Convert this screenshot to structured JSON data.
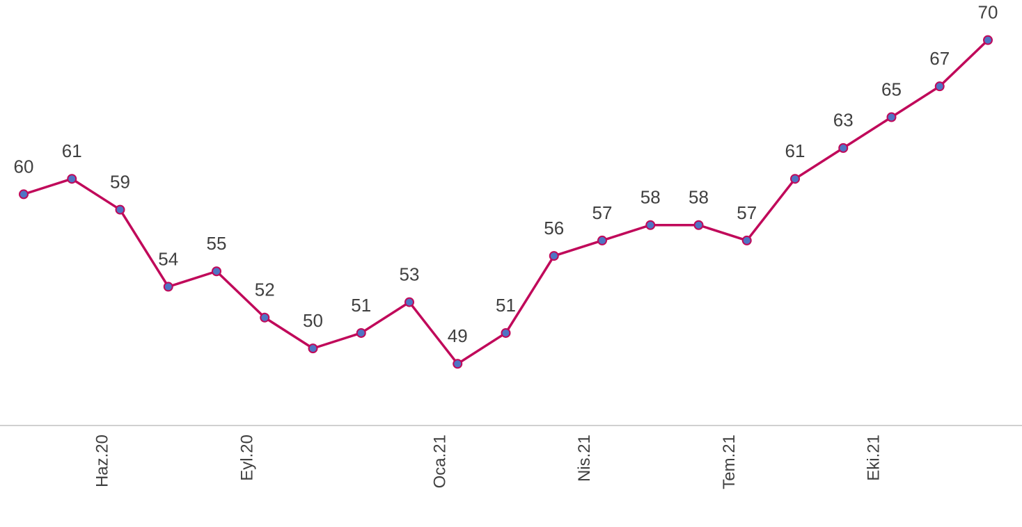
{
  "chart_data": {
    "type": "line",
    "categories": [
      null,
      "Haz.20",
      null,
      null,
      "Eyl.20",
      null,
      null,
      null,
      "Oca.21",
      null,
      null,
      "Nis.21",
      null,
      null,
      "Tem.21",
      null,
      null,
      "Eki.21",
      null,
      null,
      null
    ],
    "series": [
      {
        "name": null,
        "color": "#c0095a",
        "marker_color": "#4f74c4",
        "values": [
          60,
          61,
          59,
          54,
          55,
          52,
          50,
          51,
          53,
          49,
          51,
          56,
          57,
          58,
          58,
          57,
          61,
          63,
          65,
          67,
          70
        ]
      }
    ],
    "ylim": [
      45,
      72.6
    ],
    "grid": false
  }
}
